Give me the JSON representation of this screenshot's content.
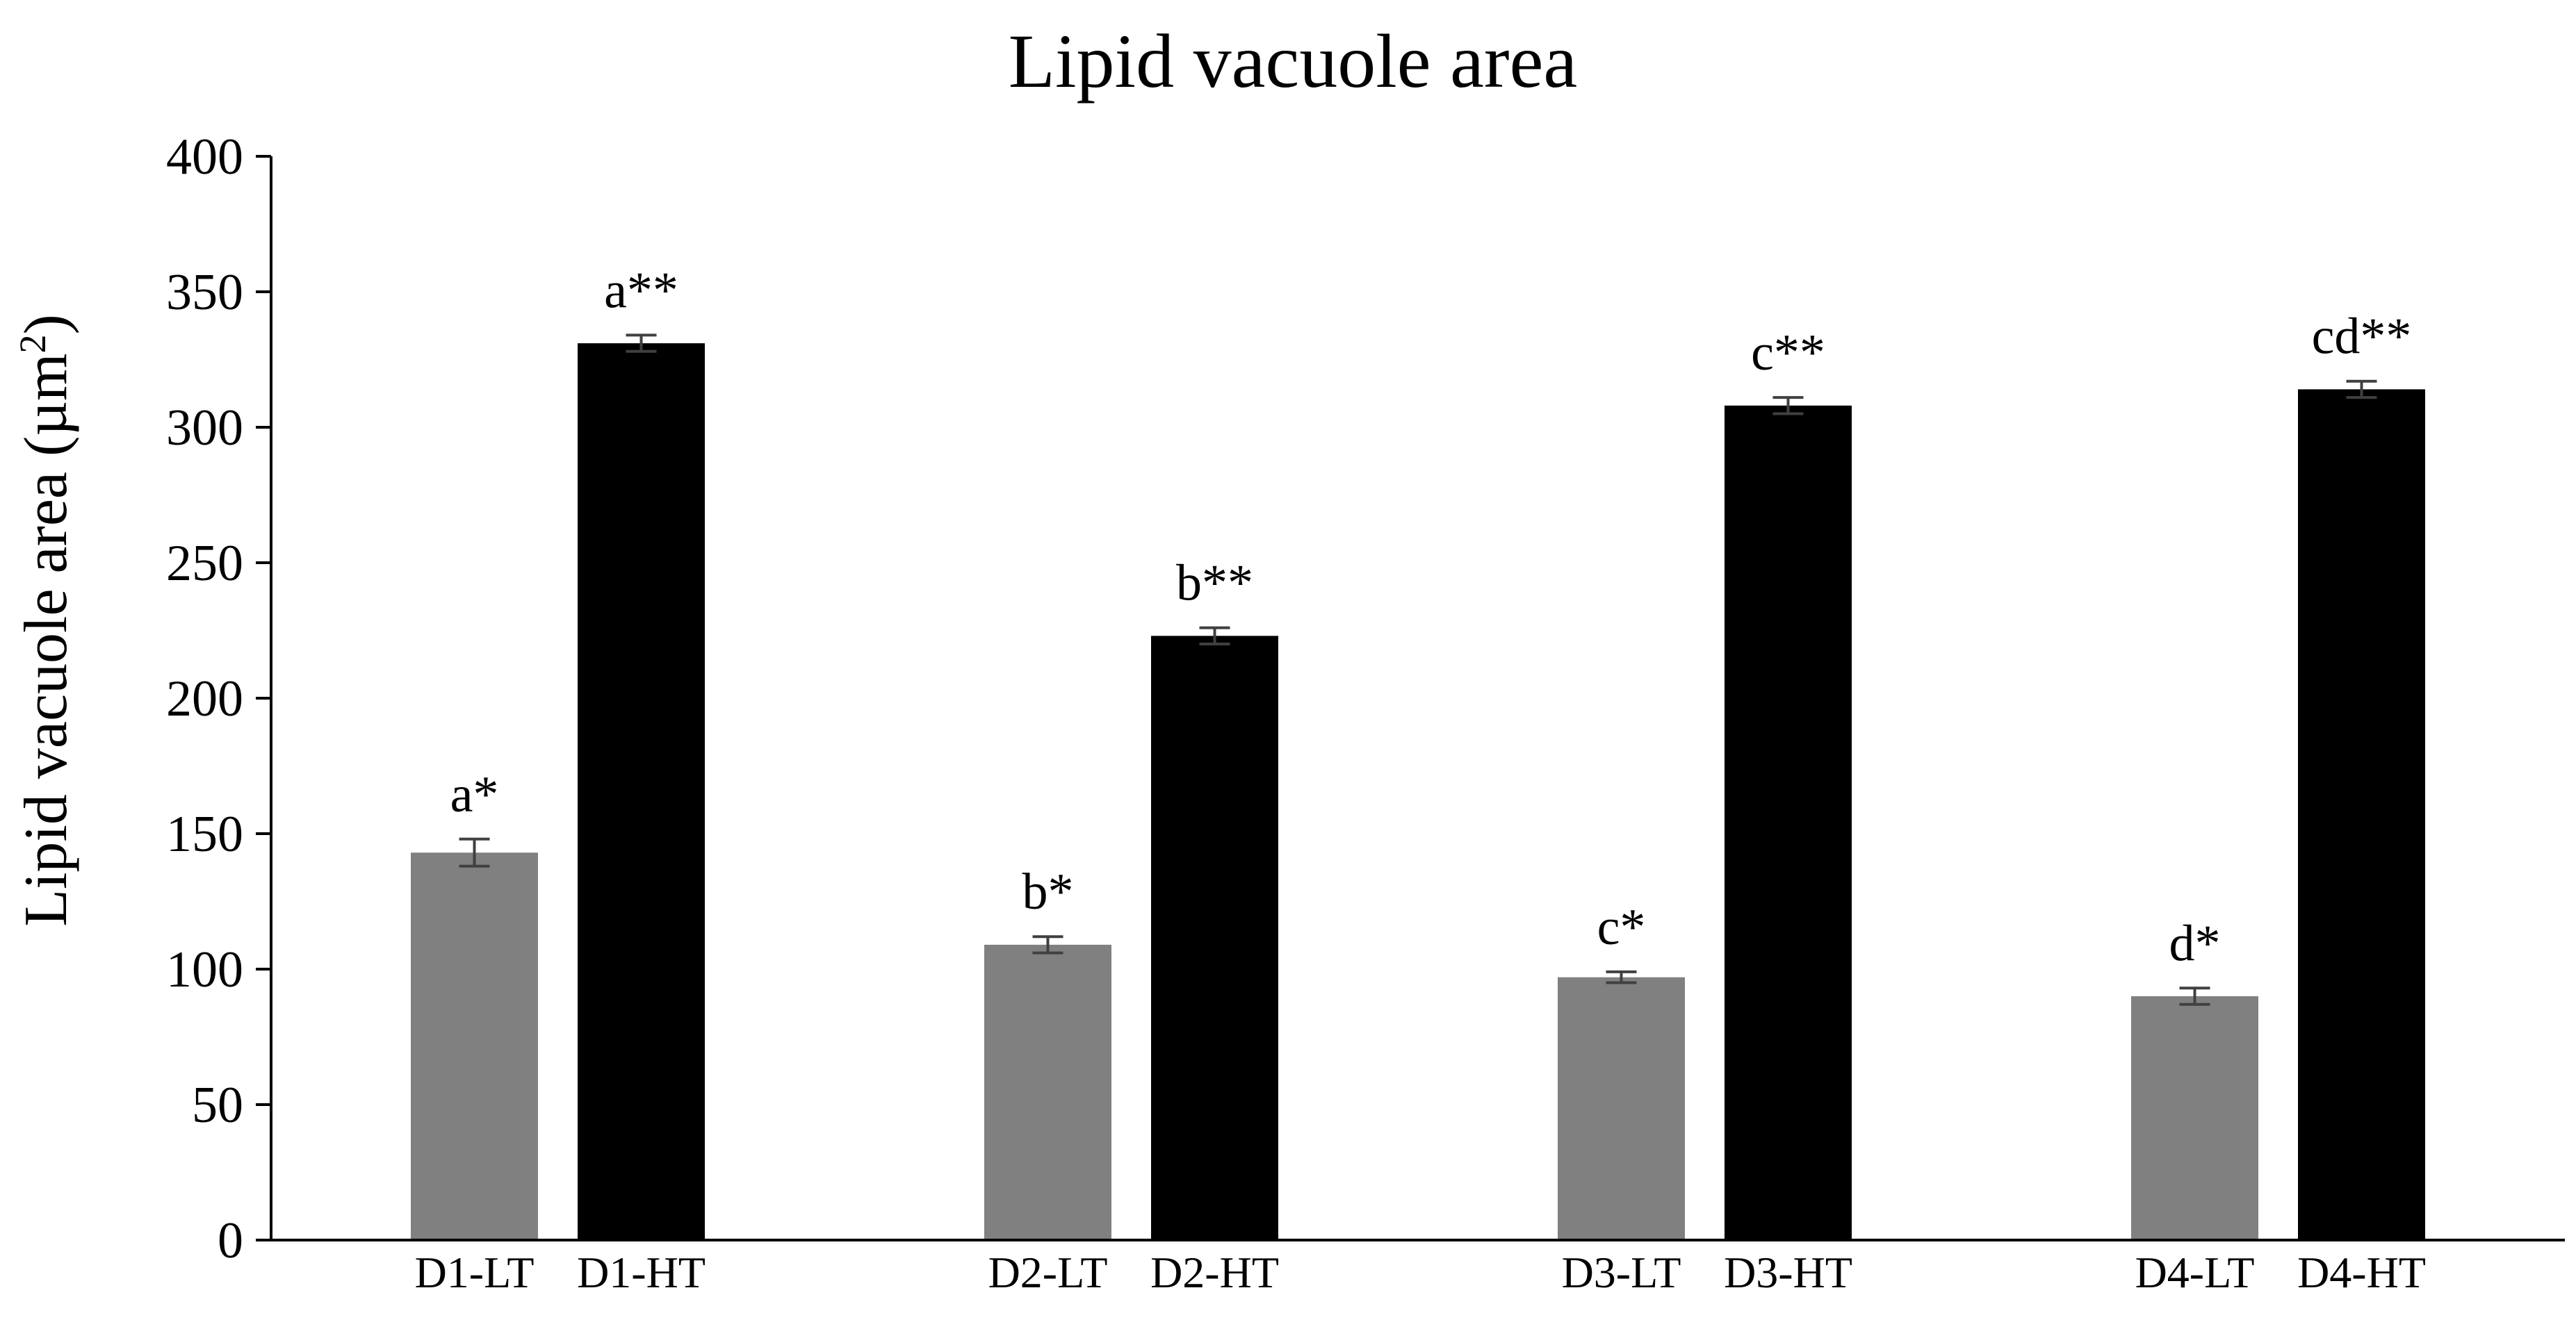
{
  "chart_data": {
    "type": "bar",
    "title": "Lipid vacuole area",
    "ylabel": "Lipid vacuole area (µm",
    "ylabel_sup": "2",
    "ylabel_tail": ")",
    "xlabel": "",
    "ylim": [
      0,
      400
    ],
    "yticks": [
      0,
      50,
      100,
      150,
      200,
      250,
      300,
      350,
      400
    ],
    "ytick_labels": [
      "0",
      "50",
      "100",
      "150",
      "200",
      "250",
      "300",
      "350",
      "400"
    ],
    "grid": false,
    "groups": [
      "D1",
      "D2",
      "D3",
      "D4"
    ],
    "bars": [
      {
        "category": "D1-LT",
        "value": 143,
        "error": 5,
        "label": "a*",
        "color": "#808080"
      },
      {
        "category": "D1-HT",
        "value": 331,
        "error": 3,
        "label": "a**",
        "color": "#000000"
      },
      {
        "category": "D2-LT",
        "value": 109,
        "error": 3,
        "label": "b*",
        "color": "#808080"
      },
      {
        "category": "D2-HT",
        "value": 223,
        "error": 3,
        "label": "b**",
        "color": "#000000"
      },
      {
        "category": "D3-LT",
        "value": 97,
        "error": 2,
        "label": "c*",
        "color": "#808080"
      },
      {
        "category": "D3-HT",
        "value": 308,
        "error": 3,
        "label": "c**",
        "color": "#000000"
      },
      {
        "category": "D4-LT",
        "value": 90,
        "error": 3,
        "label": "d*",
        "color": "#808080"
      },
      {
        "category": "D4-HT",
        "value": 314,
        "error": 3,
        "label": "cd**",
        "color": "#000000"
      }
    ]
  }
}
